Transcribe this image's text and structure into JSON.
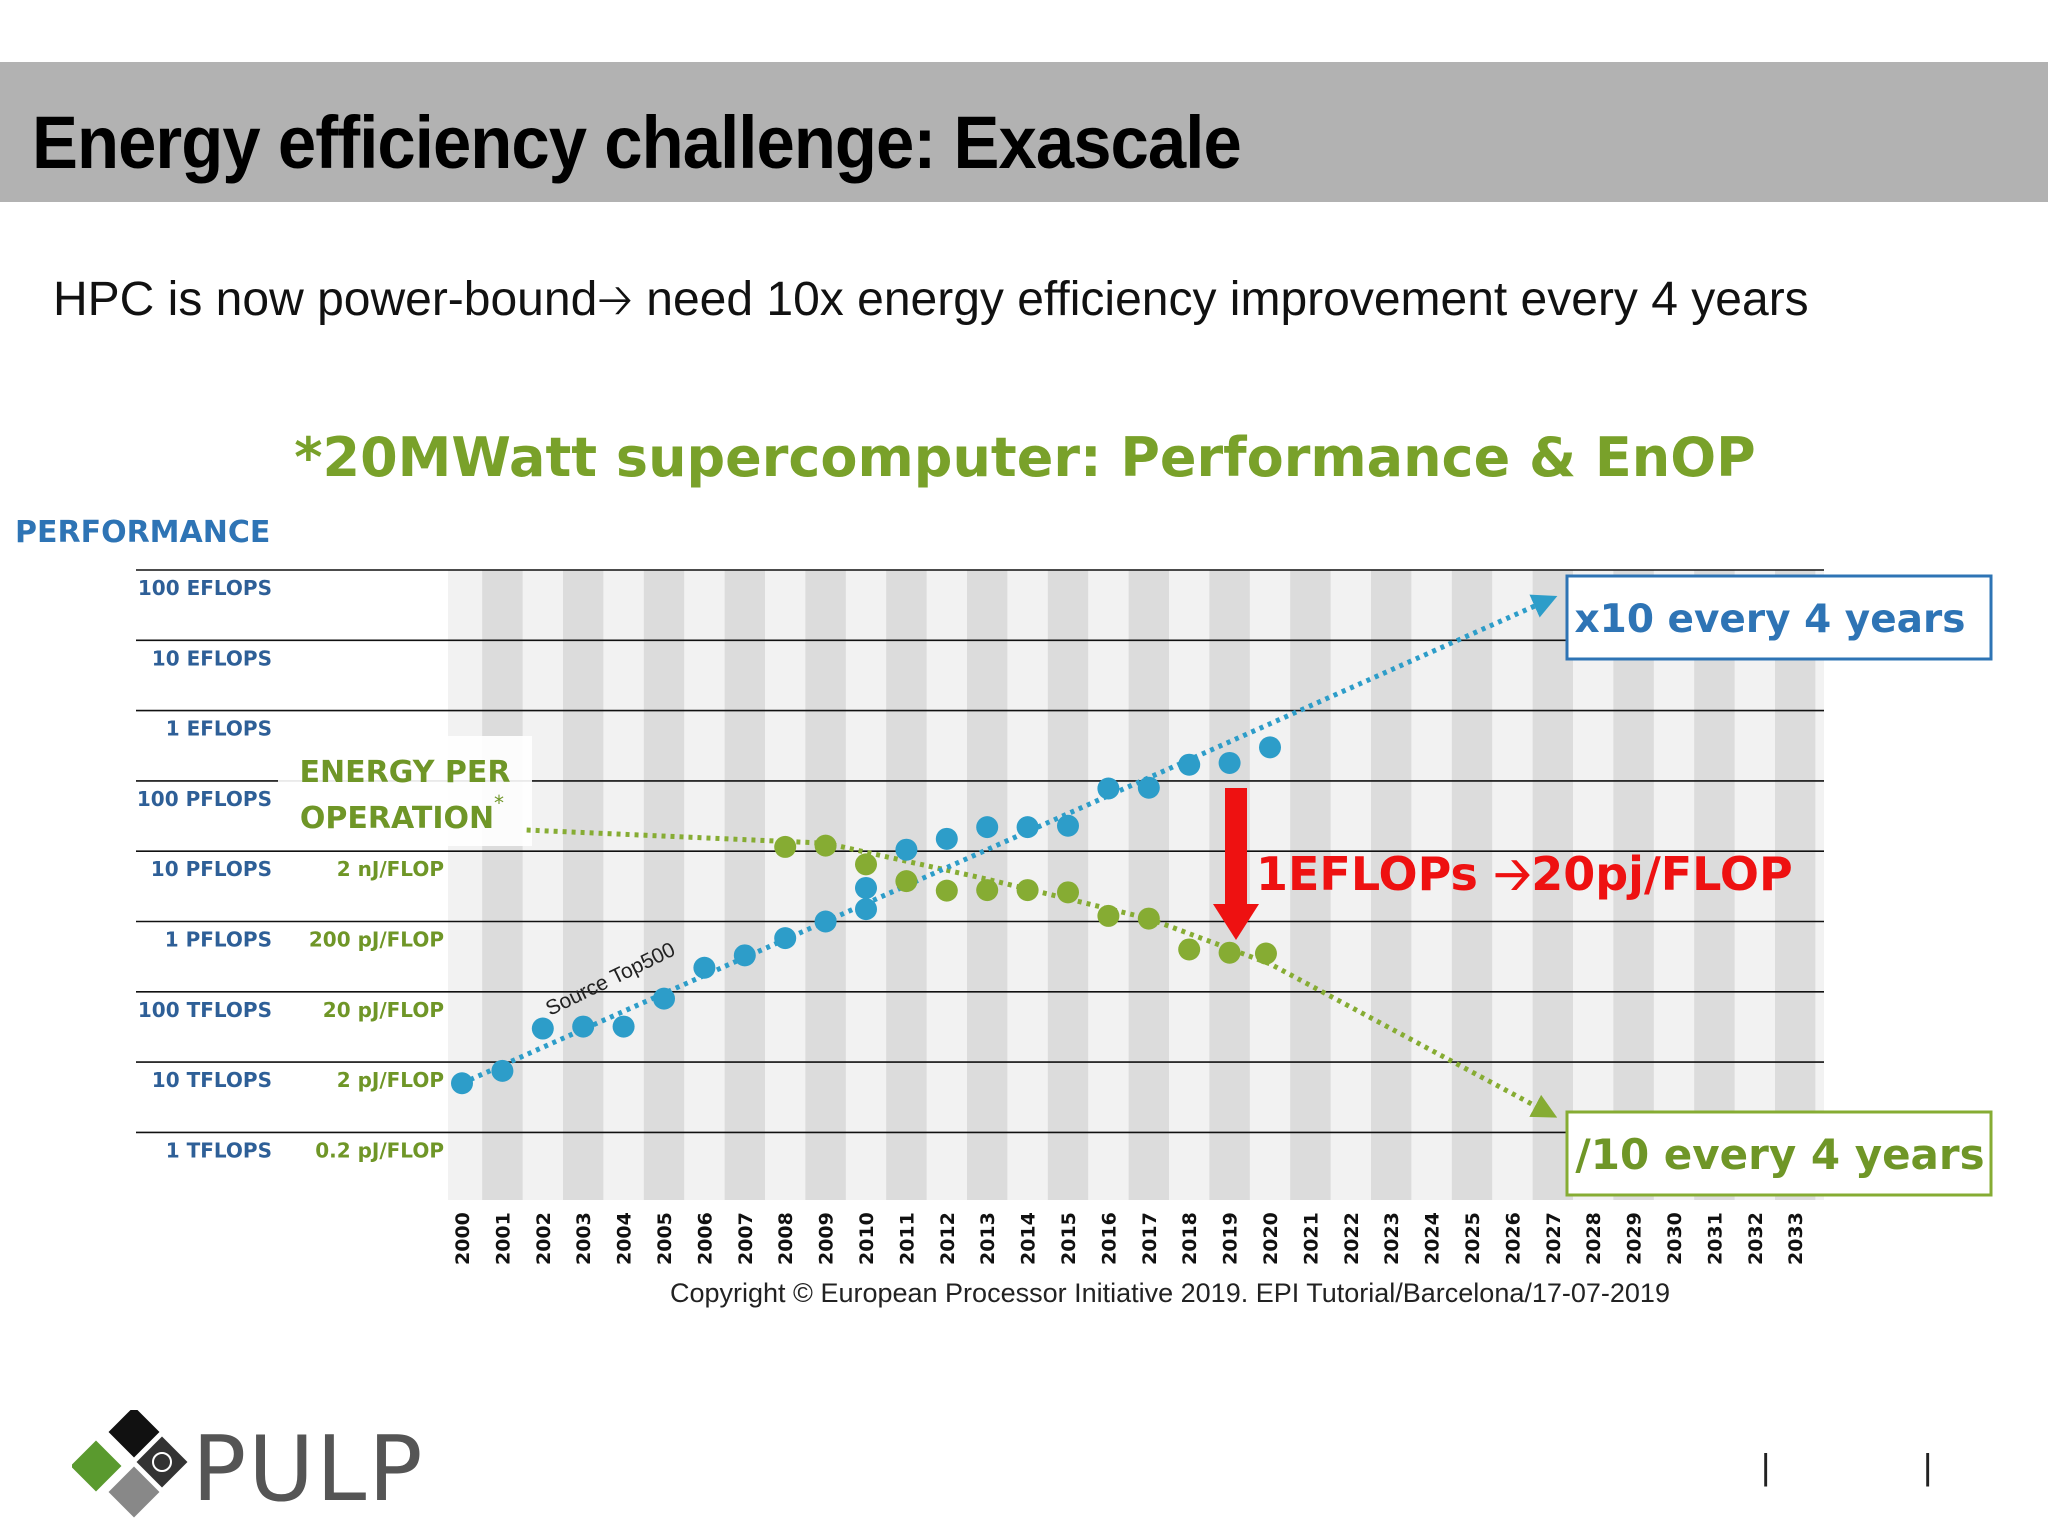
{
  "slide": {
    "title": "Energy efficiency challenge: Exascale",
    "subtitle_before": "HPC is now power-bound",
    "subtitle_arrow": "🡢",
    "subtitle_after": " need 10x energy efficiency improvement every 4 years",
    "copyright": "Copyright © European Processor Initiative 2019.  EPI Tutorial/Barcelona/17-07-2019",
    "logo_text": "PULP",
    "footer_separators": [
      "|",
      "|"
    ]
  },
  "colors": {
    "performance_blue": "#2d9dc9",
    "energy_green": "#86ac33",
    "axis_label_blue": "#2e5f97",
    "highlight_red": "#ee1111",
    "stripe_gray": "#dcdcdc",
    "stripe_light": "#f2f2f2"
  },
  "chart_data": {
    "type": "scatter",
    "title": "*20MWatt supercomputer: Performance & EnOP",
    "y_axis_title": "PERFORMANCE",
    "y2_axis_title_lines": [
      "ENERGY PER",
      "OPERATION"
    ],
    "y2_axis_title_mark": "*",
    "y_scale": "log",
    "y_ticks": [
      "100 EFLOPS",
      "10 EFLOPS",
      "1 EFLOPS",
      "100 PFLOPS",
      "10 PFLOPS",
      "1 PFLOPS",
      "100 TFLOPS",
      "10 TFLOPS",
      "1 TFLOPS"
    ],
    "y2_ticks": [
      "2 nJ/FLOP",
      "200 pJ/FLOP",
      "20 pJ/FLOP",
      "2 pJ/FLOP",
      "0.2 pJ/FLOP"
    ],
    "x_ticks": [
      "2000",
      "2001",
      "2002",
      "2003",
      "2004",
      "2005",
      "2006",
      "2007",
      "2008",
      "2009",
      "2010",
      "2011",
      "2012",
      "2013",
      "2014",
      "2015",
      "2016",
      "2017",
      "2018",
      "2019",
      "2020",
      "2021",
      "2022",
      "2023",
      "2024",
      "2025",
      "2026",
      "2027",
      "2028",
      "2029",
      "2030",
      "2031",
      "2032",
      "2033"
    ],
    "grid": true,
    "series": [
      {
        "key": "performance",
        "unit": "TFLOPS",
        "points": [
          [
            2000,
            5
          ],
          [
            2001,
            7.5
          ],
          [
            2002,
            30
          ],
          [
            2003,
            32
          ],
          [
            2004,
            32
          ],
          [
            2005,
            80
          ],
          [
            2006,
            220
          ],
          [
            2007,
            330
          ],
          [
            2008,
            580
          ],
          [
            2009,
            1000
          ],
          [
            2010,
            1500
          ],
          [
            2010,
            3000
          ],
          [
            2011,
            10500
          ],
          [
            2012,
            15000
          ],
          [
            2013,
            22000
          ],
          [
            2014,
            22000
          ],
          [
            2015,
            23000
          ],
          [
            2016,
            78000
          ],
          [
            2017,
            80000
          ],
          [
            2018,
            170000
          ],
          [
            2019,
            180000
          ],
          [
            2020,
            300000
          ]
        ],
        "trend": [
          [
            2000,
            5
          ],
          [
            2027,
            40000000
          ]
        ]
      },
      {
        "key": "energy",
        "unit": "pJ/FLOP",
        "points": [
          [
            2008,
            2300
          ],
          [
            2009,
            2400
          ],
          [
            2010,
            1300
          ],
          [
            2011,
            750
          ],
          [
            2012,
            550
          ],
          [
            2013,
            560
          ],
          [
            2014,
            560
          ],
          [
            2015,
            520
          ],
          [
            2016,
            240
          ],
          [
            2017,
            220
          ],
          [
            2018,
            80
          ],
          [
            2019,
            72
          ],
          [
            2019.9,
            70
          ]
        ],
        "trend": [
          [
            2001.6,
            4000
          ],
          [
            2009,
            2600
          ],
          [
            2013,
            800
          ],
          [
            2017,
            220
          ],
          [
            2020,
            50
          ],
          [
            2027,
            0.35
          ]
        ]
      }
    ],
    "annotations": {
      "source": "Source Top500",
      "performance_callout": "x10 every 4 years",
      "energy_callout": "/10 every 4 years",
      "target": "1EFLOPs 🡢20pj/FLOP"
    }
  }
}
